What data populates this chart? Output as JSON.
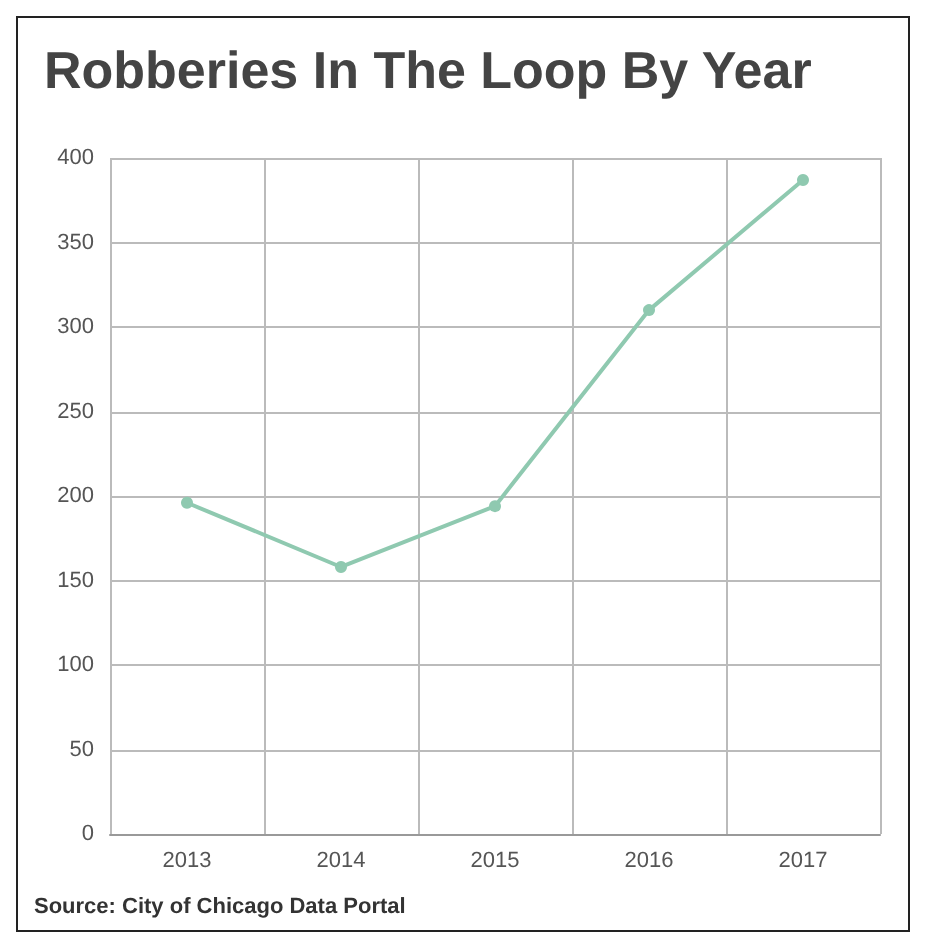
{
  "chart_data": {
    "type": "line",
    "title": "Robberies In The Loop By Year",
    "categories": [
      "2013",
      "2014",
      "2015",
      "2016",
      "2017"
    ],
    "series": [
      {
        "color": "#8fc9b0",
        "values": [
          196,
          158,
          194,
          310,
          387
        ]
      }
    ],
    "ylim": [
      0,
      400
    ],
    "yticks": [
      0,
      50,
      100,
      150,
      200,
      250,
      300,
      350,
      400
    ],
    "grid": true,
    "marker": "circle",
    "line_style": "solid",
    "annotations": [
      "Source: City of Chicago Data Portal"
    ]
  }
}
